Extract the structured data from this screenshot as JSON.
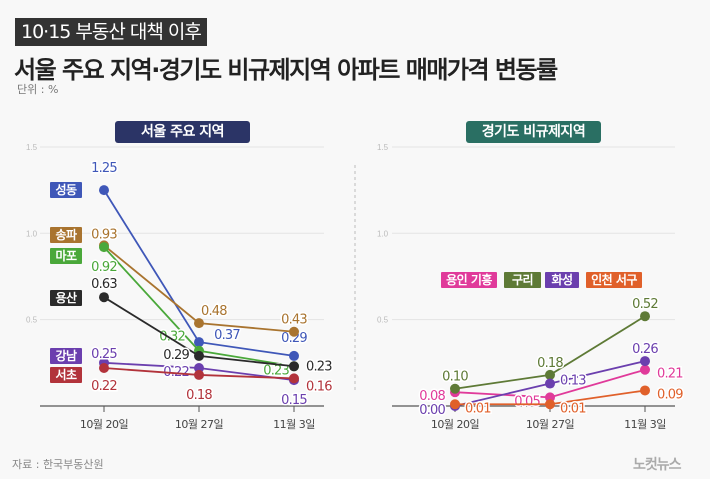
{
  "header": {
    "kicker": "10·15 부동산 대책 이후",
    "title": "서울 주요 지역·경기도 비규제지역 아파트 매매가격 변동률",
    "unit": "단위 : %"
  },
  "footer": {
    "source": "자료 : 한국부동산원",
    "logo": "노컷뉴스"
  },
  "chart_data": [
    {
      "type": "line",
      "title": "서울 주요 지역",
      "title_color": "#2b3466",
      "x": [
        "10월 20일",
        "10월 27일",
        "11월 3일"
      ],
      "ylim": [
        0,
        1.5
      ],
      "yticks": [
        "0.5",
        "1.0",
        "1.5"
      ],
      "grid": true,
      "series": [
        {
          "name": "성동",
          "color": "#3f57b8",
          "values": [
            1.25,
            0.37,
            0.29
          ],
          "labels": [
            "1.25",
            "0.37",
            "0.29"
          ]
        },
        {
          "name": "송파",
          "color": "#a9742f",
          "values": [
            0.93,
            0.48,
            0.43
          ],
          "labels": [
            "0.93",
            "0.48",
            "0.43"
          ]
        },
        {
          "name": "마포",
          "color": "#4aa83a",
          "values": [
            0.92,
            0.32,
            0.23
          ],
          "labels": [
            "0.92",
            "0.32",
            "0.23"
          ]
        },
        {
          "name": "용산",
          "color": "#2a2a2a",
          "values": [
            0.63,
            0.29,
            0.23
          ],
          "labels": [
            "0.63",
            "0.29",
            "0.23"
          ]
        },
        {
          "name": "강남",
          "color": "#6b3fae",
          "values": [
            0.25,
            0.22,
            0.15
          ],
          "labels": [
            "0.25",
            "0.22",
            "0.15"
          ]
        },
        {
          "name": "서초",
          "color": "#b2333b",
          "values": [
            0.22,
            0.18,
            0.16
          ],
          "labels": [
            "0.22",
            "0.18",
            "0.16"
          ]
        }
      ]
    },
    {
      "type": "line",
      "title": "경기도 비규제지역",
      "title_color": "#2a6f63",
      "x": [
        "10월 20일",
        "10월 27일",
        "11월 3일"
      ],
      "ylim": [
        0,
        1.5
      ],
      "yticks": [
        "0.5",
        "1.0",
        "1.5"
      ],
      "grid": true,
      "legend": "center",
      "series": [
        {
          "name": "용인 기흥",
          "color": "#e03a9a",
          "values": [
            0.08,
            0.05,
            0.21
          ],
          "labels": [
            "0.08",
            "0.05",
            "0.21"
          ]
        },
        {
          "name": "구리",
          "color": "#5e7a36",
          "values": [
            0.1,
            0.18,
            0.52
          ],
          "labels": [
            "0.10",
            "0.18",
            "0.52"
          ]
        },
        {
          "name": "화성",
          "color": "#6b3fae",
          "values": [
            0.0,
            0.13,
            0.26
          ],
          "labels": [
            "0.00",
            "0.13",
            "0.26"
          ]
        },
        {
          "name": "인천 서구",
          "color": "#e0602a",
          "values": [
            0.01,
            0.01,
            0.09
          ],
          "labels": [
            "0.01",
            "0.01",
            "0.09"
          ]
        }
      ]
    }
  ]
}
